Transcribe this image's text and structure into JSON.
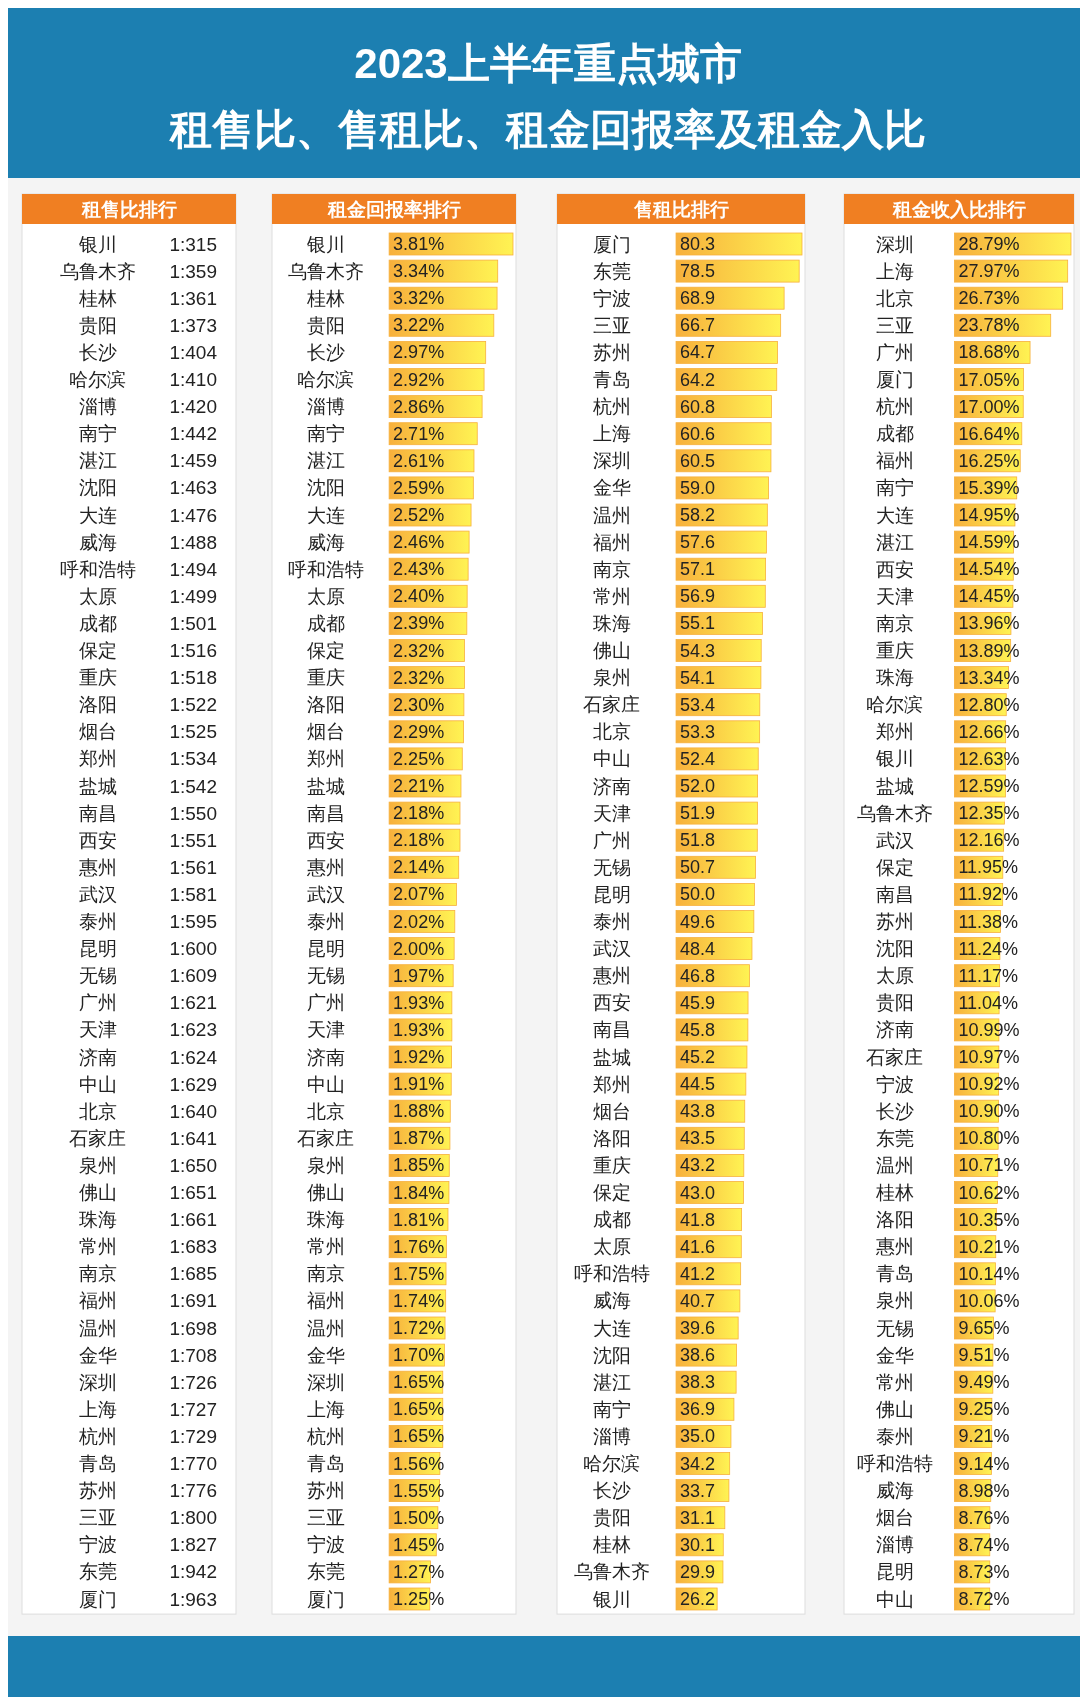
{
  "chart_data": [
    {
      "type": "other",
      "title": "租售比排行",
      "annotations": [
        "2023上半年重点城市",
        "租售比、售租比、租金回报率及租金入比"
      ],
      "categories": [
        "银川",
        "乌鲁木齐",
        "桂林",
        "贵阳",
        "长沙",
        "哈尔滨",
        "淄博",
        "南宁",
        "湛江",
        "沈阳",
        "大连",
        "威海",
        "呼和浩特",
        "太原",
        "成都",
        "保定",
        "重庆",
        "洛阳",
        "烟台",
        "郑州",
        "盐城",
        "南昌",
        "西安",
        "惠州",
        "武汉",
        "泰州",
        "昆明",
        "无锡",
        "广州",
        "天津",
        "济南",
        "中山",
        "北京",
        "石家庄",
        "泉州",
        "佛山",
        "珠海",
        "常州",
        "南京",
        "福州",
        "温州",
        "金华",
        "深圳",
        "上海",
        "杭州",
        "青岛",
        "苏州",
        "三亚",
        "宁波",
        "东莞",
        "厦门"
      ],
      "value_labels": [
        "1:315",
        "1:359",
        "1:361",
        "1:373",
        "1:404",
        "1:410",
        "1:420",
        "1:442",
        "1:459",
        "1:463",
        "1:476",
        "1:488",
        "1:494",
        "1:499",
        "1:501",
        "1:516",
        "1:518",
        "1:522",
        "1:525",
        "1:534",
        "1:542",
        "1:550",
        "1:551",
        "1:561",
        "1:581",
        "1:595",
        "1:600",
        "1:609",
        "1:621",
        "1:623",
        "1:624",
        "1:629",
        "1:640",
        "1:641",
        "1:650",
        "1:651",
        "1:661",
        "1:683",
        "1:685",
        "1:691",
        "1:698",
        "1:708",
        "1:726",
        "1:727",
        "1:729",
        "1:770",
        "1:776",
        "1:800",
        "1:827",
        "1:942",
        "1:963"
      ]
    },
    {
      "type": "bar",
      "orientation": "horizontal",
      "title": "租金回报率排行",
      "color": "#f7b03c",
      "categories": [
        "银川",
        "乌鲁木齐",
        "桂林",
        "贵阳",
        "长沙",
        "哈尔滨",
        "淄博",
        "南宁",
        "湛江",
        "沈阳",
        "大连",
        "威海",
        "呼和浩特",
        "太原",
        "成都",
        "保定",
        "重庆",
        "洛阳",
        "烟台",
        "郑州",
        "盐城",
        "南昌",
        "西安",
        "惠州",
        "武汉",
        "泰州",
        "昆明",
        "无锡",
        "广州",
        "天津",
        "济南",
        "中山",
        "北京",
        "石家庄",
        "泉州",
        "佛山",
        "珠海",
        "常州",
        "南京",
        "福州",
        "温州",
        "金华",
        "深圳",
        "上海",
        "杭州",
        "青岛",
        "苏州",
        "三亚",
        "宁波",
        "东莞",
        "厦门"
      ],
      "values": [
        3.81,
        3.34,
        3.32,
        3.22,
        2.97,
        2.92,
        2.86,
        2.71,
        2.61,
        2.59,
        2.52,
        2.46,
        2.43,
        2.4,
        2.39,
        2.32,
        2.32,
        2.3,
        2.29,
        2.25,
        2.21,
        2.18,
        2.18,
        2.14,
        2.07,
        2.02,
        2.0,
        1.97,
        1.93,
        1.93,
        1.92,
        1.91,
        1.88,
        1.87,
        1.85,
        1.84,
        1.81,
        1.76,
        1.75,
        1.74,
        1.72,
        1.7,
        1.65,
        1.65,
        1.65,
        1.56,
        1.55,
        1.5,
        1.45,
        1.27,
        1.25
      ],
      "value_labels": [
        "3.81%",
        "3.34%",
        "3.32%",
        "3.22%",
        "2.97%",
        "2.92%",
        "2.86%",
        "2.71%",
        "2.61%",
        "2.59%",
        "2.52%",
        "2.46%",
        "2.43%",
        "2.40%",
        "2.39%",
        "2.32%",
        "2.32%",
        "2.30%",
        "2.29%",
        "2.25%",
        "2.21%",
        "2.18%",
        "2.18%",
        "2.14%",
        "2.07%",
        "2.02%",
        "2.00%",
        "1.97%",
        "1.93%",
        "1.93%",
        "1.92%",
        "1.91%",
        "1.88%",
        "1.87%",
        "1.85%",
        "1.84%",
        "1.81%",
        "1.76%",
        "1.75%",
        "1.74%",
        "1.72%",
        "1.70%",
        "1.65%",
        "1.65%",
        "1.65%",
        "1.56%",
        "1.55%",
        "1.50%",
        "1.45%",
        "1.27%",
        "1.25%"
      ]
    },
    {
      "type": "bar",
      "orientation": "horizontal",
      "title": "售租比排行",
      "color": "#f7b03c",
      "categories": [
        "厦门",
        "东莞",
        "宁波",
        "三亚",
        "苏州",
        "青岛",
        "杭州",
        "上海",
        "深圳",
        "金华",
        "温州",
        "福州",
        "南京",
        "常州",
        "珠海",
        "佛山",
        "泉州",
        "石家庄",
        "北京",
        "中山",
        "济南",
        "天津",
        "广州",
        "无锡",
        "昆明",
        "泰州",
        "武汉",
        "惠州",
        "西安",
        "南昌",
        "盐城",
        "郑州",
        "烟台",
        "洛阳",
        "重庆",
        "保定",
        "成都",
        "太原",
        "呼和浩特",
        "威海",
        "大连",
        "沈阳",
        "湛江",
        "南宁",
        "淄博",
        "哈尔滨",
        "长沙",
        "贵阳",
        "桂林",
        "乌鲁木齐",
        "银川"
      ],
      "values": [
        80.3,
        78.5,
        68.9,
        66.7,
        64.7,
        64.2,
        60.8,
        60.6,
        60.5,
        59.0,
        58.2,
        57.6,
        57.1,
        56.9,
        55.1,
        54.3,
        54.1,
        53.4,
        53.3,
        52.4,
        52.0,
        51.9,
        51.8,
        50.7,
        50.0,
        49.6,
        48.4,
        46.8,
        45.9,
        45.8,
        45.2,
        44.5,
        43.8,
        43.5,
        43.2,
        43.0,
        41.8,
        41.6,
        41.2,
        40.7,
        39.6,
        38.6,
        38.3,
        36.9,
        35.0,
        34.2,
        33.7,
        31.1,
        30.1,
        29.9,
        26.2
      ],
      "value_labels": [
        "80.3",
        "78.5",
        "68.9",
        "66.7",
        "64.7",
        "64.2",
        "60.8",
        "60.6",
        "60.5",
        "59.0",
        "58.2",
        "57.6",
        "57.1",
        "56.9",
        "55.1",
        "54.3",
        "54.1",
        "53.4",
        "53.3",
        "52.4",
        "52.0",
        "51.9",
        "51.8",
        "50.7",
        "50.0",
        "49.6",
        "48.4",
        "46.8",
        "45.9",
        "45.8",
        "45.2",
        "44.5",
        "43.8",
        "43.5",
        "43.2",
        "43.0",
        "41.8",
        "41.6",
        "41.2",
        "40.7",
        "39.6",
        "38.6",
        "38.3",
        "36.9",
        "35.0",
        "34.2",
        "33.7",
        "31.1",
        "30.1",
        "29.9",
        "26.2"
      ]
    },
    {
      "type": "bar",
      "orientation": "horizontal",
      "title": "租金收入比排行",
      "color": "#f7b03c",
      "categories": [
        "深圳",
        "上海",
        "北京",
        "三亚",
        "广州",
        "厦门",
        "杭州",
        "成都",
        "福州",
        "南宁",
        "大连",
        "湛江",
        "西安",
        "天津",
        "南京",
        "重庆",
        "珠海",
        "哈尔滨",
        "郑州",
        "银川",
        "盐城",
        "乌鲁木齐",
        "武汉",
        "保定",
        "南昌",
        "苏州",
        "沈阳",
        "太原",
        "贵阳",
        "济南",
        "石家庄",
        "宁波",
        "长沙",
        "东莞",
        "温州",
        "桂林",
        "洛阳",
        "惠州",
        "青岛",
        "泉州",
        "无锡",
        "金华",
        "常州",
        "佛山",
        "泰州",
        "呼和浩特",
        "威海",
        "烟台",
        "淄博",
        "昆明",
        "中山"
      ],
      "values": [
        28.79,
        27.97,
        26.73,
        23.78,
        18.68,
        17.05,
        17.0,
        16.64,
        16.25,
        15.39,
        14.95,
        14.59,
        14.54,
        14.45,
        13.96,
        13.89,
        13.34,
        12.8,
        12.66,
        12.63,
        12.59,
        12.35,
        12.16,
        11.95,
        11.92,
        11.38,
        11.24,
        11.17,
        11.04,
        10.99,
        10.97,
        10.92,
        10.9,
        10.8,
        10.71,
        10.62,
        10.35,
        10.21,
        10.14,
        10.06,
        9.65,
        9.51,
        9.49,
        9.25,
        9.21,
        9.14,
        8.98,
        8.76,
        8.74,
        8.73,
        8.72
      ],
      "value_labels": [
        "28.79%",
        "27.97%",
        "26.73%",
        "23.78%",
        "18.68%",
        "17.05%",
        "17.00%",
        "16.64%",
        "16.25%",
        "15.39%",
        "14.95%",
        "14.59%",
        "14.54%",
        "14.45%",
        "13.96%",
        "13.89%",
        "13.34%",
        "12.80%",
        "12.66%",
        "12.63%",
        "12.59%",
        "12.35%",
        "12.16%",
        "11.95%",
        "11.92%",
        "11.38%",
        "11.24%",
        "11.17%",
        "11.04%",
        "10.99%",
        "10.97%",
        "10.92%",
        "10.90%",
        "10.80%",
        "10.71%",
        "10.62%",
        "10.35%",
        "10.21%",
        "10.14%",
        "10.06%",
        "9.65%",
        "9.51%",
        "9.49%",
        "9.25%",
        "9.21%",
        "9.14%",
        "8.98%",
        "8.76%",
        "8.74%",
        "8.73%",
        "8.72%"
      ]
    }
  ]
}
